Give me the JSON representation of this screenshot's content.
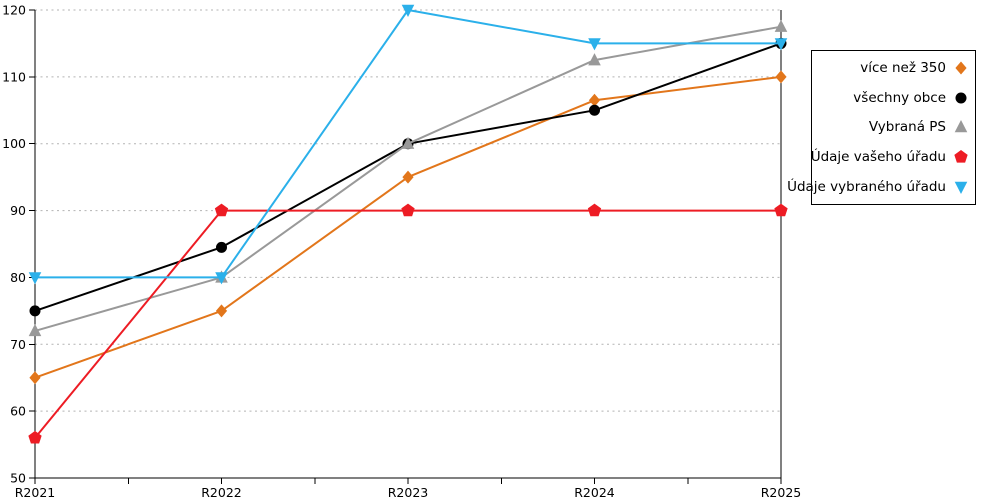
{
  "chart_data": {
    "type": "line",
    "title": "",
    "xlabel": "",
    "ylabel": "",
    "categories": [
      "R2021",
      "R2022",
      "R2023",
      "R2024",
      "R2025"
    ],
    "series": [
      {
        "name": "více než 350",
        "color": "#e2761b",
        "marker": "diamond",
        "values": [
          65,
          75,
          95,
          106.5,
          110
        ]
      },
      {
        "name": "všechny obce",
        "color": "#000000",
        "marker": "circle",
        "values": [
          75,
          84.5,
          100,
          105,
          115
        ]
      },
      {
        "name": "Vybraná PS",
        "color": "#999999",
        "marker": "triangle-up",
        "values": [
          72,
          80,
          100,
          112.5,
          117.5
        ]
      },
      {
        "name": "Údaje vašeho úřadu",
        "color": "#ed1c24",
        "marker": "pentagon",
        "values": [
          56,
          90,
          90,
          90,
          90
        ]
      },
      {
        "name": "Údaje vybraného úřadu",
        "color": "#2bb0ea",
        "marker": "triangle-down",
        "values": [
          80,
          80,
          120,
          115,
          115
        ]
      }
    ],
    "ylim": [
      50,
      120
    ],
    "yticks": [
      50,
      60,
      70,
      80,
      90,
      100,
      110,
      120
    ],
    "grid": "horizontal-dotted",
    "legend_position": "right-outside"
  },
  "axes": {
    "color": "#000000",
    "grid_color": "#b3b3b3"
  },
  "legend_style": {
    "border_color": "#000000",
    "background": "#ffffff"
  }
}
